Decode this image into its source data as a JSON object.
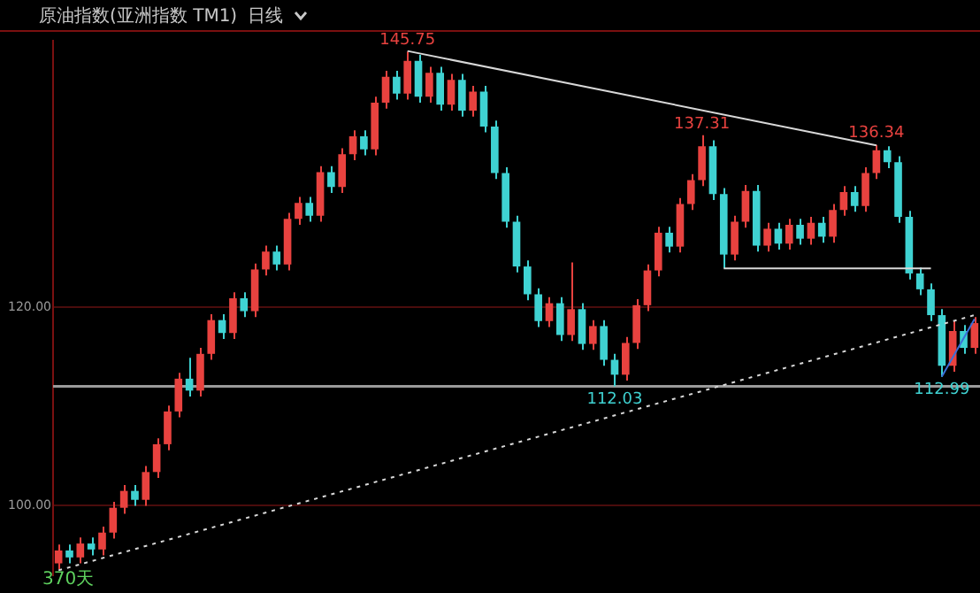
{
  "chart_data": {
    "type": "candlestick",
    "title": "原油指数(亚洲指数 TM1)",
    "subtitle": "日线",
    "categories": [
      null,
      null,
      null,
      null,
      null,
      null,
      null,
      null,
      null,
      null,
      null,
      null,
      null,
      null,
      null,
      null,
      null,
      null,
      null,
      null,
      null,
      null,
      null,
      null,
      null,
      null,
      null,
      null,
      null,
      null,
      null,
      null,
      null,
      null,
      null,
      null,
      null,
      null,
      null,
      null,
      null,
      null,
      null,
      null,
      null,
      null,
      null,
      null,
      null,
      null,
      null,
      null,
      null,
      null,
      null,
      null,
      null,
      null,
      null,
      null,
      null,
      null,
      null,
      null,
      null,
      null,
      null,
      null,
      null,
      null,
      null,
      null,
      null,
      null,
      null,
      null,
      null,
      null,
      null,
      null,
      null,
      null,
      null,
      null,
      null
    ],
    "ylim": [
      93,
      146.8
    ],
    "yticks": [
      {
        "value": 100,
        "label": "100.00"
      },
      {
        "value": 120,
        "label": "120.00"
      }
    ],
    "grid": "y",
    "tick_labels": "y",
    "legend": false,
    "series": [
      {
        "type": "candlestick",
        "ohlc": [
          [
            94.2,
            96.1,
            93.6,
            95.5
          ],
          [
            95.5,
            96.1,
            94.2,
            94.8
          ],
          [
            94.8,
            96.8,
            94.2,
            96.2
          ],
          [
            96.2,
            96.8,
            95.0,
            95.6
          ],
          [
            95.6,
            97.9,
            95.0,
            97.3
          ],
          [
            97.3,
            100.4,
            96.7,
            99.8
          ],
          [
            99.8,
            102.1,
            99.2,
            101.5
          ],
          [
            101.5,
            102.1,
            100.0,
            100.6
          ],
          [
            100.6,
            104.0,
            100.0,
            103.4
          ],
          [
            103.4,
            106.8,
            102.8,
            106.2
          ],
          [
            106.2,
            110.1,
            105.6,
            109.5
          ],
          [
            109.5,
            113.4,
            108.9,
            112.8
          ],
          [
            112.8,
            114.9,
            111.0,
            111.6
          ],
          [
            111.6,
            115.9,
            111.0,
            115.3
          ],
          [
            115.3,
            119.3,
            114.7,
            118.7
          ],
          [
            118.7,
            119.3,
            116.8,
            117.4
          ],
          [
            117.4,
            121.5,
            116.8,
            120.9
          ],
          [
            120.9,
            121.5,
            119.0,
            119.6
          ],
          [
            119.6,
            124.4,
            119.0,
            123.8
          ],
          [
            123.8,
            126.2,
            123.2,
            125.6
          ],
          [
            125.6,
            126.2,
            123.7,
            124.3
          ],
          [
            124.3,
            129.5,
            123.7,
            128.9
          ],
          [
            128.9,
            131.1,
            128.3,
            130.5
          ],
          [
            130.5,
            131.1,
            128.6,
            129.2
          ],
          [
            129.2,
            134.2,
            128.6,
            133.6
          ],
          [
            133.6,
            134.2,
            131.5,
            132.1
          ],
          [
            132.1,
            136.0,
            131.5,
            135.4
          ],
          [
            135.4,
            137.8,
            134.8,
            137.2
          ],
          [
            137.2,
            137.8,
            135.3,
            135.9
          ],
          [
            135.9,
            141.2,
            135.3,
            140.6
          ],
          [
            140.6,
            143.8,
            140.0,
            143.2
          ],
          [
            143.2,
            143.8,
            140.9,
            141.5
          ],
          [
            141.5,
            145.75,
            140.9,
            144.8
          ],
          [
            144.8,
            145.4,
            140.6,
            141.2
          ],
          [
            141.2,
            144.2,
            140.6,
            143.6
          ],
          [
            143.6,
            144.2,
            139.8,
            140.4
          ],
          [
            140.4,
            143.5,
            139.8,
            142.9
          ],
          [
            142.9,
            143.5,
            139.2,
            139.8
          ],
          [
            139.8,
            142.3,
            139.2,
            141.7
          ],
          [
            141.7,
            142.3,
            137.6,
            138.2
          ],
          [
            138.2,
            138.8,
            132.9,
            133.5
          ],
          [
            133.5,
            134.1,
            128.0,
            128.6
          ],
          [
            128.6,
            129.2,
            123.5,
            124.1
          ],
          [
            124.1,
            124.7,
            120.7,
            121.3
          ],
          [
            121.3,
            121.9,
            118.0,
            118.6
          ],
          [
            118.6,
            121.0,
            118.0,
            120.4
          ],
          [
            120.4,
            121.0,
            116.6,
            117.2
          ],
          [
            117.2,
            124.5,
            116.6,
            119.8
          ],
          [
            119.8,
            120.4,
            115.7,
            116.3
          ],
          [
            116.3,
            118.7,
            115.7,
            118.1
          ],
          [
            118.1,
            118.7,
            114.1,
            114.7
          ],
          [
            114.7,
            115.3,
            112.03,
            113.2
          ],
          [
            113.2,
            117.0,
            112.6,
            116.4
          ],
          [
            116.4,
            120.8,
            115.8,
            120.2
          ],
          [
            120.2,
            124.3,
            119.6,
            123.7
          ],
          [
            123.7,
            128.1,
            123.1,
            127.5
          ],
          [
            127.5,
            128.1,
            125.5,
            126.1
          ],
          [
            126.1,
            131.0,
            125.5,
            130.4
          ],
          [
            130.4,
            133.4,
            129.8,
            132.8
          ],
          [
            132.8,
            137.31,
            132.2,
            136.2
          ],
          [
            136.2,
            136.8,
            130.8,
            131.4
          ],
          [
            131.4,
            132.0,
            123.9,
            125.3
          ],
          [
            125.3,
            129.2,
            124.7,
            128.6
          ],
          [
            128.6,
            132.3,
            128.0,
            131.7
          ],
          [
            131.7,
            132.3,
            125.6,
            126.2
          ],
          [
            126.2,
            128.5,
            125.6,
            127.9
          ],
          [
            127.9,
            128.5,
            125.8,
            126.4
          ],
          [
            126.4,
            128.9,
            125.8,
            128.3
          ],
          [
            128.3,
            128.9,
            126.3,
            126.9
          ],
          [
            126.9,
            129.1,
            126.3,
            128.5
          ],
          [
            128.5,
            129.1,
            126.5,
            127.1
          ],
          [
            127.1,
            130.4,
            126.5,
            129.8
          ],
          [
            129.8,
            132.2,
            129.2,
            131.6
          ],
          [
            131.6,
            132.2,
            129.6,
            130.2
          ],
          [
            130.2,
            134.1,
            129.6,
            133.5
          ],
          [
            133.5,
            136.34,
            132.9,
            135.8
          ],
          [
            135.8,
            136.2,
            134.0,
            134.6
          ],
          [
            134.6,
            135.2,
            128.5,
            129.1
          ],
          [
            129.1,
            129.7,
            122.8,
            123.4
          ],
          [
            123.4,
            124.0,
            121.2,
            121.8
          ],
          [
            121.8,
            122.4,
            118.6,
            119.2
          ],
          [
            119.2,
            119.8,
            112.99,
            114.1
          ],
          [
            114.1,
            118.6,
            113.5,
            117.6
          ],
          [
            117.6,
            118.2,
            115.3,
            115.9
          ],
          [
            115.9,
            119.0,
            115.3,
            118.4
          ]
        ],
        "colors": [
          "#e8423f",
          "#3fd2d2",
          "#e8423f",
          "#3fd2d2",
          "#e8423f",
          "#e8423f",
          "#e8423f",
          "#3fd2d2",
          "#e8423f",
          "#e8423f",
          "#e8423f",
          "#e8423f",
          "#3fd2d2",
          "#e8423f",
          "#e8423f",
          "#3fd2d2",
          "#e8423f",
          "#3fd2d2",
          "#e8423f",
          "#e8423f",
          "#3fd2d2",
          "#e8423f",
          "#e8423f",
          "#3fd2d2",
          "#e8423f",
          "#3fd2d2",
          "#e8423f",
          "#e8423f",
          "#3fd2d2",
          "#e8423f",
          "#e8423f",
          "#3fd2d2",
          "#e8423f",
          "#3fd2d2",
          "#e8423f",
          "#3fd2d2",
          "#e8423f",
          "#3fd2d2",
          "#e8423f",
          "#3fd2d2",
          "#3fd2d2",
          "#3fd2d2",
          "#3fd2d2",
          "#3fd2d2",
          "#3fd2d2",
          "#e8423f",
          "#3fd2d2",
          "#e8423f",
          "#3fd2d2",
          "#e8423f",
          "#3fd2d2",
          "#3fd2d2",
          "#e8423f",
          "#e8423f",
          "#e8423f",
          "#e8423f",
          "#3fd2d2",
          "#e8423f",
          "#e8423f",
          "#e8423f",
          "#3fd2d2",
          "#3fd2d2",
          "#e8423f",
          "#e8423f",
          "#3fd2d2",
          "#e8423f",
          "#3fd2d2",
          "#e8423f",
          "#3fd2d2",
          "#e8423f",
          "#3fd2d2",
          "#e8423f",
          "#e8423f",
          "#3fd2d2",
          "#e8423f",
          "#e8423f",
          "#3fd2d2",
          "#3fd2d2",
          "#3fd2d2",
          "#3fd2d2",
          "#3fd2d2",
          "#3fd2d2",
          "#e8423f",
          "#3fd2d2",
          "#e8423f"
        ]
      },
      {
        "type": "line",
        "color": "#d8d8d8",
        "line_style": "solid",
        "values": [
          null,
          null,
          null,
          null,
          null,
          null,
          null,
          null,
          null,
          null,
          null,
          null,
          null,
          null,
          null,
          null,
          null,
          null,
          null,
          null,
          null,
          null,
          null,
          null,
          null,
          null,
          null,
          null,
          null,
          null,
          null,
          null,
          145.8,
          null,
          null,
          null,
          null,
          null,
          null,
          null,
          null,
          null,
          null,
          null,
          null,
          null,
          null,
          null,
          null,
          null,
          null,
          null,
          null,
          null,
          null,
          null,
          null,
          null,
          null,
          null,
          null,
          null,
          null,
          null,
          null,
          null,
          null,
          null,
          null,
          null,
          null,
          null,
          null,
          null,
          null,
          136.3,
          null,
          null,
          null,
          null,
          null,
          null,
          null,
          null,
          null
        ]
      },
      {
        "type": "line",
        "color": "#d8d8d8",
        "line_style": "solid",
        "values": [
          null,
          null,
          null,
          null,
          null,
          null,
          null,
          null,
          null,
          null,
          null,
          null,
          null,
          null,
          null,
          null,
          null,
          null,
          null,
          null,
          null,
          null,
          null,
          null,
          null,
          null,
          null,
          null,
          null,
          null,
          null,
          null,
          null,
          null,
          null,
          null,
          null,
          null,
          null,
          null,
          null,
          null,
          null,
          null,
          null,
          null,
          null,
          null,
          null,
          null,
          null,
          null,
          null,
          null,
          null,
          null,
          null,
          null,
          null,
          null,
          null,
          123.9,
          null,
          null,
          null,
          null,
          null,
          null,
          null,
          null,
          null,
          null,
          null,
          null,
          null,
          null,
          null,
          null,
          null,
          null,
          123.9,
          null,
          null,
          null,
          null
        ]
      },
      {
        "type": "line",
        "color": "#d8d8d8",
        "line_style": "dotted",
        "values": [
          93.5,
          null,
          null,
          null,
          null,
          null,
          null,
          null,
          null,
          null,
          null,
          null,
          null,
          null,
          null,
          null,
          null,
          null,
          null,
          null,
          null,
          null,
          null,
          null,
          null,
          null,
          null,
          null,
          null,
          null,
          null,
          null,
          null,
          null,
          null,
          null,
          null,
          null,
          null,
          null,
          null,
          null,
          null,
          null,
          null,
          null,
          null,
          null,
          null,
          null,
          null,
          null,
          null,
          null,
          null,
          null,
          null,
          null,
          null,
          null,
          null,
          null,
          null,
          null,
          null,
          null,
          null,
          null,
          null,
          null,
          null,
          null,
          null,
          null,
          null,
          null,
          null,
          null,
          null,
          null,
          null,
          null,
          null,
          null,
          119.2
        ]
      },
      {
        "type": "line",
        "color": "#3a6fd8",
        "line_style": "solid",
        "values": [
          null,
          null,
          null,
          null,
          null,
          null,
          null,
          null,
          null,
          null,
          null,
          null,
          null,
          null,
          null,
          null,
          null,
          null,
          null,
          null,
          null,
          null,
          null,
          null,
          null,
          null,
          null,
          null,
          null,
          null,
          null,
          null,
          null,
          null,
          null,
          null,
          null,
          null,
          null,
          null,
          null,
          null,
          null,
          null,
          null,
          null,
          null,
          null,
          null,
          null,
          null,
          null,
          null,
          null,
          null,
          null,
          null,
          null,
          null,
          null,
          null,
          null,
          null,
          null,
          null,
          null,
          null,
          null,
          null,
          null,
          null,
          null,
          null,
          null,
          null,
          null,
          null,
          null,
          null,
          null,
          null,
          113.0,
          null,
          null,
          118.8
        ]
      }
    ],
    "ref_lines": [
      {
        "axis": "y",
        "value": 112.03,
        "color": "#9a9a9a"
      }
    ],
    "annotations": [
      {
        "text": "145.75",
        "y": 145.75
      },
      {
        "text": "137.31",
        "y": 137.31
      },
      {
        "text": "136.34",
        "y": 136.34
      },
      {
        "text": "112.03",
        "y": 112.03
      },
      {
        "text": "112.99",
        "y": 112.99
      },
      "370天"
    ]
  }
}
